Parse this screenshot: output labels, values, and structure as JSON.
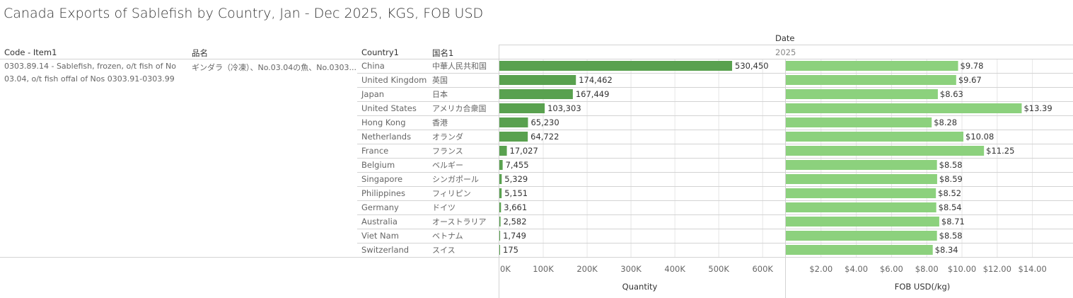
{
  "title": "Canada Exports of Sablefish by Country, Jan - Dec 2025, KGS, FOB USD",
  "headers": {
    "code": "Code - Item1",
    "name": "品名",
    "country": "Country1",
    "country_jp": "国名1",
    "date": "Date",
    "year": "2025"
  },
  "item": {
    "code_line1": "0303.89.14 - Sablefish, frozen, o/t fish of No",
    "code_line2": "03.04, o/t fish offal of Nos 0303.91-0303.99",
    "name": "ギンダラ（冷凍）、No.03.04の魚、No.0303..."
  },
  "colors": {
    "quantity_bar": "#59a14f",
    "price_bar": "#8cd17d",
    "grid": "#e6e6e6",
    "divider": "#d3d3d3"
  },
  "chart_data": [
    {
      "type": "bar",
      "orientation": "horizontal",
      "measure": "Quantity",
      "xlabel": "Quantity",
      "categories": [
        "China",
        "United Kingdom",
        "Japan",
        "United States",
        "Hong Kong",
        "Netherlands",
        "France",
        "Belgium",
        "Singapore",
        "Philippines",
        "Germany",
        "Australia",
        "Viet Nam",
        "Switzerland"
      ],
      "categories_jp": [
        "中華人民共和国",
        "英国",
        "日本",
        "アメリカ合衆国",
        "香港",
        "オランダ",
        "フランス",
        "ベルギー",
        "シンガポール",
        "フィリピン",
        "ドイツ",
        "オーストラリア",
        "ベトナム",
        "スイス"
      ],
      "values": [
        530450,
        174462,
        167449,
        103303,
        65230,
        64722,
        17027,
        7455,
        5329,
        5151,
        3661,
        2582,
        1749,
        175
      ],
      "labels": [
        "530,450",
        "174,462",
        "167,449",
        "103,303",
        "65,230",
        "64,722",
        "17,027",
        "7,455",
        "5,329",
        "5,151",
        "3,661",
        "2,582",
        "1,749",
        "175"
      ],
      "xlim": [
        0,
        640000
      ],
      "ticks": [
        0,
        100000,
        200000,
        300000,
        400000,
        500000,
        600000
      ],
      "tick_labels": [
        "0K",
        "100K",
        "200K",
        "300K",
        "400K",
        "500K",
        "600K"
      ]
    },
    {
      "type": "bar",
      "orientation": "horizontal",
      "measure": "FOB USD(/kg)",
      "xlabel": "FOB USD(/kg)",
      "categories": [
        "China",
        "United Kingdom",
        "Japan",
        "United States",
        "Hong Kong",
        "Netherlands",
        "France",
        "Belgium",
        "Singapore",
        "Philippines",
        "Germany",
        "Australia",
        "Viet Nam",
        "Switzerland"
      ],
      "values": [
        9.78,
        9.67,
        8.63,
        13.39,
        8.28,
        10.08,
        11.25,
        8.58,
        8.59,
        8.52,
        8.54,
        8.71,
        8.58,
        8.34
      ],
      "labels": [
        "$9.78",
        "$9.67",
        "$8.63",
        "$13.39",
        "$8.28",
        "$10.08",
        "$11.25",
        "$8.58",
        "$8.59",
        "$8.52",
        "$8.54",
        "$8.71",
        "$8.58",
        "$8.34"
      ],
      "xlim": [
        0,
        15.5
      ],
      "ticks": [
        2,
        4,
        6,
        8,
        10,
        12,
        14
      ],
      "tick_labels": [
        "$2.00",
        "$4.00",
        "$6.00",
        "$8.00",
        "$10.00",
        "$12.00",
        "$14.00"
      ]
    }
  ]
}
